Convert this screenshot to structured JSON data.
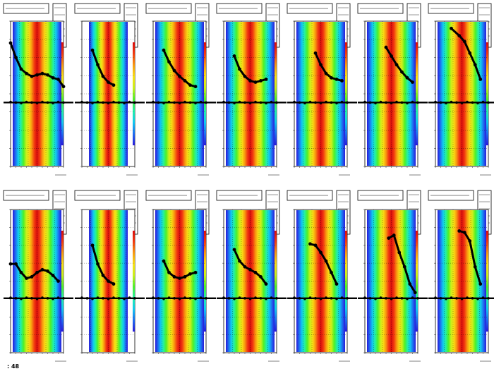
{
  "footer": {
    "text": ": 48"
  },
  "colors": {
    "colormap": [
      "#2a1ad8",
      "#1e6cf0",
      "#10c8f0",
      "#22f0a8",
      "#4cf02a",
      "#c8f01a",
      "#f8e014",
      "#f89a10",
      "#f23a10",
      "#d80c0c"
    ],
    "marker": "#000000",
    "frame": "#000000"
  },
  "chart_data": [
    {
      "type": "heatmap",
      "title": "",
      "overlay": [
        [
          0.0,
          0.15
        ],
        [
          0.1,
          0.25
        ],
        [
          0.2,
          0.33
        ],
        [
          0.3,
          0.36
        ],
        [
          0.4,
          0.38
        ],
        [
          0.5,
          0.37
        ],
        [
          0.6,
          0.36
        ],
        [
          0.7,
          0.37
        ],
        [
          0.8,
          0.39
        ],
        [
          0.9,
          0.4
        ],
        [
          1.0,
          0.45
        ]
      ],
      "baseline": 0.56
    },
    {
      "type": "heatmap",
      "title": "",
      "overlay": [
        [
          0.2,
          0.2
        ],
        [
          0.3,
          0.3
        ],
        [
          0.4,
          0.38
        ],
        [
          0.5,
          0.42
        ],
        [
          0.6,
          0.44
        ]
      ],
      "baseline": 0.56
    },
    {
      "type": "heatmap",
      "title": "",
      "overlay": [
        [
          0.2,
          0.2
        ],
        [
          0.3,
          0.28
        ],
        [
          0.4,
          0.34
        ],
        [
          0.5,
          0.38
        ],
        [
          0.6,
          0.41
        ],
        [
          0.7,
          0.44
        ],
        [
          0.8,
          0.45
        ]
      ],
      "baseline": 0.56
    },
    {
      "type": "heatmap",
      "title": "",
      "overlay": [
        [
          0.2,
          0.24
        ],
        [
          0.3,
          0.33
        ],
        [
          0.4,
          0.38
        ],
        [
          0.5,
          0.41
        ],
        [
          0.6,
          0.42
        ],
        [
          0.7,
          0.41
        ],
        [
          0.8,
          0.4
        ]
      ],
      "baseline": 0.56
    },
    {
      "type": "heatmap",
      "title": "",
      "overlay": [
        [
          0.4,
          0.22
        ],
        [
          0.5,
          0.3
        ],
        [
          0.6,
          0.36
        ],
        [
          0.7,
          0.39
        ],
        [
          0.8,
          0.4
        ],
        [
          0.9,
          0.41
        ]
      ],
      "baseline": 0.56
    },
    {
      "type": "heatmap",
      "title": "",
      "overlay": [
        [
          0.4,
          0.18
        ],
        [
          0.5,
          0.24
        ],
        [
          0.6,
          0.3
        ],
        [
          0.7,
          0.35
        ],
        [
          0.8,
          0.39
        ],
        [
          0.9,
          0.42
        ]
      ],
      "baseline": 0.56
    },
    {
      "type": "heatmap",
      "title": "",
      "overlay": [
        [
          0.3,
          0.05
        ],
        [
          0.45,
          0.1
        ],
        [
          0.55,
          0.14
        ],
        [
          0.65,
          0.22
        ],
        [
          0.75,
          0.3
        ],
        [
          0.85,
          0.4
        ]
      ],
      "baseline": 0.56
    },
    {
      "type": "heatmap",
      "title": "",
      "overlay": [
        [
          0.0,
          0.38
        ],
        [
          0.1,
          0.38
        ],
        [
          0.2,
          0.44
        ],
        [
          0.3,
          0.48
        ],
        [
          0.4,
          0.47
        ],
        [
          0.5,
          0.44
        ],
        [
          0.6,
          0.42
        ],
        [
          0.7,
          0.43
        ],
        [
          0.8,
          0.46
        ],
        [
          0.9,
          0.5
        ]
      ],
      "baseline": 0.62
    },
    {
      "type": "heatmap",
      "title": "",
      "overlay": [
        [
          0.2,
          0.25
        ],
        [
          0.3,
          0.38
        ],
        [
          0.4,
          0.46
        ],
        [
          0.5,
          0.5
        ],
        [
          0.6,
          0.52
        ]
      ],
      "baseline": 0.62
    },
    {
      "type": "heatmap",
      "title": "",
      "overlay": [
        [
          0.2,
          0.36
        ],
        [
          0.3,
          0.44
        ],
        [
          0.4,
          0.47
        ],
        [
          0.5,
          0.48
        ],
        [
          0.6,
          0.47
        ],
        [
          0.7,
          0.45
        ],
        [
          0.8,
          0.44
        ]
      ],
      "baseline": 0.62
    },
    {
      "type": "heatmap",
      "title": "",
      "overlay": [
        [
          0.2,
          0.28
        ],
        [
          0.3,
          0.36
        ],
        [
          0.4,
          0.4
        ],
        [
          0.5,
          0.42
        ],
        [
          0.6,
          0.44
        ],
        [
          0.7,
          0.47
        ],
        [
          0.8,
          0.52
        ]
      ],
      "baseline": 0.62
    },
    {
      "type": "heatmap",
      "title": "",
      "overlay": [
        [
          0.3,
          0.24
        ],
        [
          0.4,
          0.25
        ],
        [
          0.5,
          0.3
        ],
        [
          0.6,
          0.36
        ],
        [
          0.7,
          0.44
        ],
        [
          0.8,
          0.52
        ]
      ],
      "baseline": 0.62
    },
    {
      "type": "heatmap",
      "title": "",
      "overlay": [
        [
          0.45,
          0.2
        ],
        [
          0.55,
          0.18
        ],
        [
          0.65,
          0.3
        ],
        [
          0.75,
          0.4
        ],
        [
          0.85,
          0.52
        ],
        [
          0.95,
          0.58
        ]
      ],
      "baseline": 0.62
    },
    {
      "type": "heatmap",
      "title": "",
      "overlay": [
        [
          0.45,
          0.15
        ],
        [
          0.55,
          0.16
        ],
        [
          0.65,
          0.22
        ],
        [
          0.75,
          0.4
        ],
        [
          0.85,
          0.52
        ]
      ],
      "baseline": 0.62
    }
  ]
}
